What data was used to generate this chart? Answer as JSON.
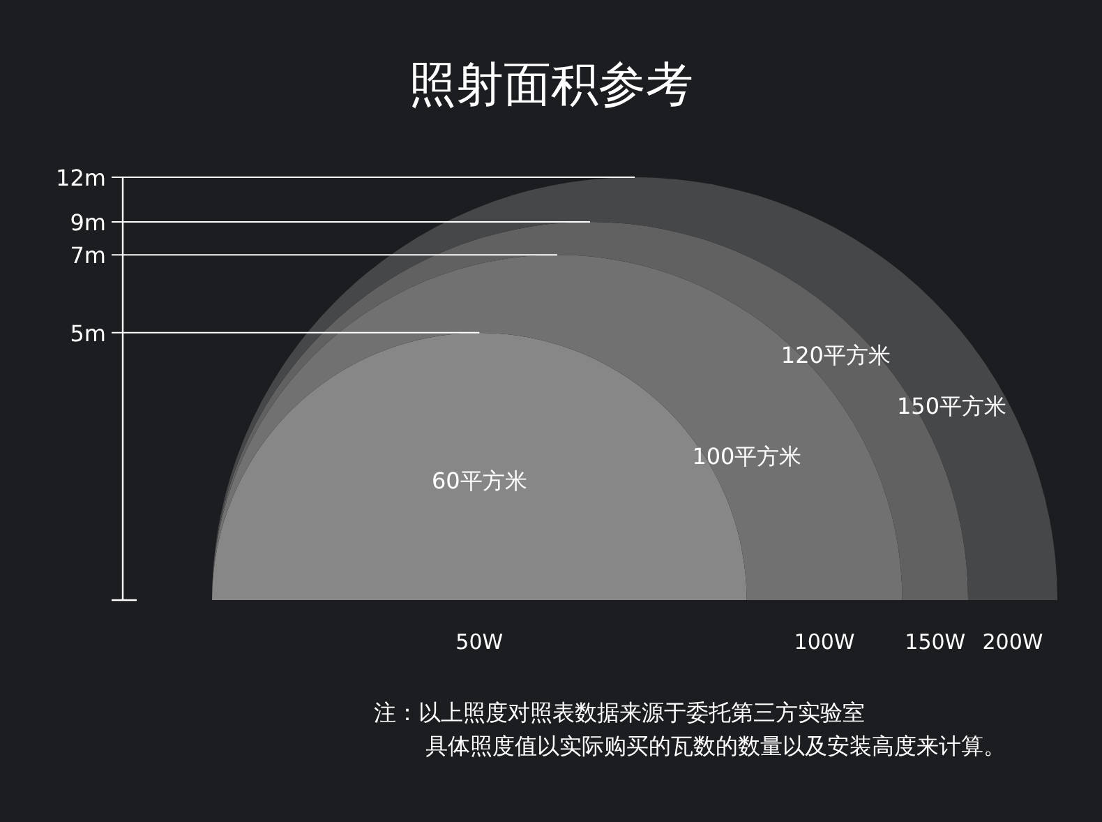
{
  "chart_data": {
    "type": "other",
    "title": "照射面积参考",
    "categories": [
      "50W",
      "100W",
      "150W",
      "200W"
    ],
    "values": [
      60,
      100,
      120,
      150
    ],
    "value_labels": [
      "60平方米",
      "100平方米",
      "120平方米",
      "150平方米"
    ],
    "colors": [
      "#878787",
      "#717171",
      "#616161",
      "#464749"
    ],
    "annotations": [
      "5m",
      "7m",
      "9m",
      "12m",
      "注：以上照度对照表数据来源于委托第三方实验室",
      "具体照度值以实际购买的瓦数的数量以及安装高度来计算。"
    ]
  }
}
